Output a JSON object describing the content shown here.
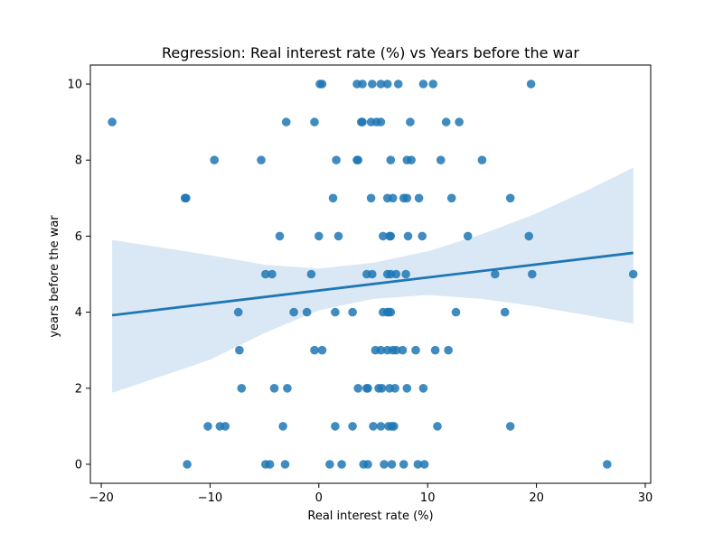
{
  "chart_data": {
    "type": "scatter",
    "title": "Regression: Real interest rate (%) vs Years before the war",
    "xlabel": "Real interest rate (%)",
    "ylabel": "years before the war",
    "xlim": [
      -21,
      30.5
    ],
    "ylim": [
      -0.5,
      10.5
    ],
    "xticks": [
      -20,
      -10,
      0,
      10,
      20,
      30
    ],
    "yticks": [
      0,
      2,
      4,
      6,
      8,
      10
    ],
    "grid": false,
    "colors": {
      "points": "#1f77b4",
      "line": "#1f77b4",
      "band": "#c6dbef"
    },
    "points": [
      [
        0.1,
        10
      ],
      [
        0.3,
        10
      ],
      [
        3.5,
        10
      ],
      [
        4.0,
        10
      ],
      [
        4.9,
        10
      ],
      [
        5.7,
        10
      ],
      [
        6.3,
        10
      ],
      [
        7.3,
        10
      ],
      [
        9.6,
        10
      ],
      [
        10.5,
        10
      ],
      [
        19.5,
        10
      ],
      [
        -19.0,
        9
      ],
      [
        -3.0,
        9
      ],
      [
        -0.4,
        9
      ],
      [
        3.9,
        9
      ],
      [
        4.0,
        9
      ],
      [
        4.8,
        9
      ],
      [
        5.3,
        9
      ],
      [
        5.7,
        9
      ],
      [
        8.4,
        9
      ],
      [
        11.7,
        9
      ],
      [
        12.9,
        9
      ],
      [
        -9.6,
        8
      ],
      [
        -5.3,
        8
      ],
      [
        1.6,
        8
      ],
      [
        3.5,
        8
      ],
      [
        3.6,
        8
      ],
      [
        6.6,
        8
      ],
      [
        8.1,
        8
      ],
      [
        8.5,
        8
      ],
      [
        11.2,
        8
      ],
      [
        15.0,
        8
      ],
      [
        -12.3,
        7
      ],
      [
        -12.2,
        7
      ],
      [
        1.3,
        7
      ],
      [
        4.8,
        7
      ],
      [
        6.3,
        7
      ],
      [
        6.8,
        7
      ],
      [
        7.8,
        7
      ],
      [
        8.1,
        7
      ],
      [
        9.2,
        7
      ],
      [
        12.2,
        7
      ],
      [
        17.6,
        7
      ],
      [
        -3.6,
        6
      ],
      [
        0.0,
        6
      ],
      [
        1.8,
        6
      ],
      [
        5.9,
        6
      ],
      [
        6.5,
        6
      ],
      [
        6.6,
        6
      ],
      [
        8.2,
        6
      ],
      [
        9.5,
        6
      ],
      [
        13.7,
        6
      ],
      [
        19.3,
        6
      ],
      [
        -4.9,
        5
      ],
      [
        -4.3,
        5
      ],
      [
        -0.7,
        5
      ],
      [
        4.4,
        5
      ],
      [
        4.9,
        5
      ],
      [
        6.3,
        5
      ],
      [
        6.6,
        5
      ],
      [
        7.1,
        5
      ],
      [
        8.0,
        5
      ],
      [
        16.2,
        5
      ],
      [
        19.6,
        5
      ],
      [
        28.9,
        5
      ],
      [
        -7.4,
        4
      ],
      [
        -2.3,
        4
      ],
      [
        -1.1,
        4
      ],
      [
        1.5,
        4
      ],
      [
        3.1,
        4
      ],
      [
        5.9,
        4
      ],
      [
        6.3,
        4
      ],
      [
        6.4,
        4
      ],
      [
        6.6,
        4
      ],
      [
        12.6,
        4
      ],
      [
        17.1,
        4
      ],
      [
        -7.3,
        3
      ],
      [
        -0.4,
        3
      ],
      [
        0.3,
        3
      ],
      [
        5.2,
        3
      ],
      [
        5.7,
        3
      ],
      [
        6.3,
        3
      ],
      [
        6.8,
        3
      ],
      [
        7.1,
        3
      ],
      [
        7.7,
        3
      ],
      [
        8.9,
        3
      ],
      [
        10.7,
        3
      ],
      [
        11.9,
        3
      ],
      [
        -7.1,
        2
      ],
      [
        -4.1,
        2
      ],
      [
        -2.9,
        2
      ],
      [
        3.6,
        2
      ],
      [
        4.4,
        2
      ],
      [
        4.5,
        2
      ],
      [
        5.5,
        2
      ],
      [
        5.8,
        2
      ],
      [
        6.5,
        2
      ],
      [
        7.0,
        2
      ],
      [
        8.1,
        2
      ],
      [
        9.6,
        2
      ],
      [
        -10.2,
        1
      ],
      [
        -9.1,
        1
      ],
      [
        -8.6,
        1
      ],
      [
        -3.3,
        1
      ],
      [
        1.5,
        1
      ],
      [
        3.1,
        1
      ],
      [
        5.0,
        1
      ],
      [
        5.7,
        1
      ],
      [
        6.4,
        1
      ],
      [
        6.7,
        1
      ],
      [
        6.9,
        1
      ],
      [
        10.9,
        1
      ],
      [
        17.6,
        1
      ],
      [
        -12.1,
        0
      ],
      [
        -4.9,
        0
      ],
      [
        -4.5,
        0
      ],
      [
        -3.1,
        0
      ],
      [
        1.0,
        0
      ],
      [
        2.1,
        0
      ],
      [
        4.1,
        0
      ],
      [
        4.5,
        0
      ],
      [
        6.0,
        0
      ],
      [
        6.7,
        0
      ],
      [
        7.8,
        0
      ],
      [
        9.1,
        0
      ],
      [
        9.7,
        0
      ],
      [
        26.5,
        0
      ]
    ],
    "regression_line": {
      "x": [
        -19.0,
        28.9
      ],
      "y": [
        3.92,
        5.56
      ]
    },
    "confidence_band": {
      "x": [
        -19.0,
        -10,
        -5,
        0,
        5,
        10,
        15,
        20,
        25,
        28.9
      ],
      "upper": [
        5.9,
        5.5,
        5.25,
        5.15,
        5.3,
        5.6,
        6.05,
        6.6,
        7.25,
        7.8
      ],
      "lower": [
        1.88,
        2.75,
        3.45,
        4.05,
        4.35,
        4.45,
        4.35,
        4.15,
        3.9,
        3.7
      ]
    }
  }
}
